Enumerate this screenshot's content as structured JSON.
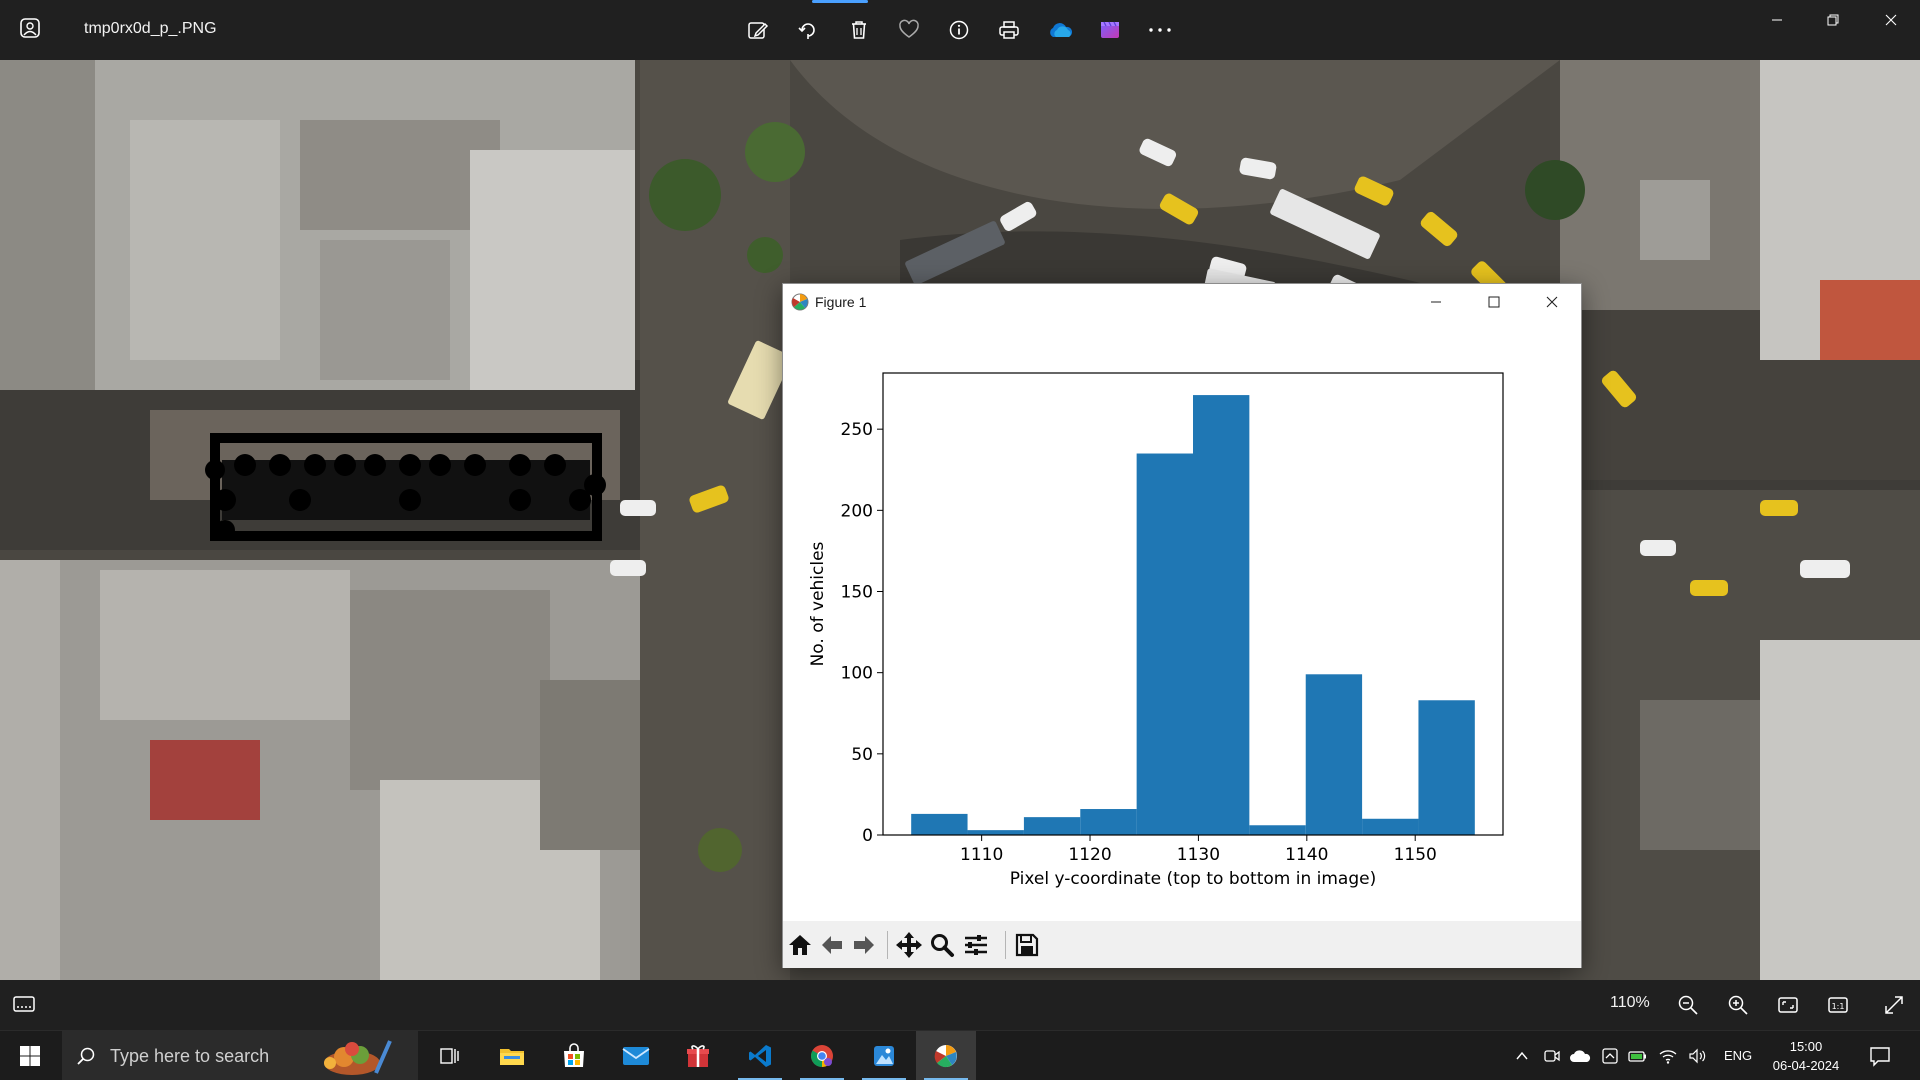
{
  "photos_app": {
    "file_title": "tmp0rx0d_p_.PNG",
    "toolbar_icons": [
      "edit-image-icon",
      "rotate-icon",
      "delete-icon",
      "favorite-icon",
      "info-icon",
      "print-icon",
      "onedrive-icon",
      "clipchamp-icon",
      "more-icon"
    ],
    "zoom_level": "110%"
  },
  "figure": {
    "window_title": "Figure 1",
    "toolbar_tools": [
      "home-icon",
      "back-icon",
      "forward-icon",
      "pan-icon",
      "zoom-icon",
      "configure-subplots-icon",
      "save-icon"
    ]
  },
  "chart_data": {
    "type": "bar",
    "bins": [
      {
        "x0": 1103.5,
        "x1": 1108.7,
        "count": 13
      },
      {
        "x0": 1108.7,
        "x1": 1113.9,
        "count": 3
      },
      {
        "x0": 1113.9,
        "x1": 1119.1,
        "count": 11
      },
      {
        "x0": 1119.1,
        "x1": 1124.3,
        "count": 16
      },
      {
        "x0": 1124.3,
        "x1": 1129.5,
        "count": 235
      },
      {
        "x0": 1129.5,
        "x1": 1134.7,
        "count": 271
      },
      {
        "x0": 1134.7,
        "x1": 1139.9,
        "count": 6
      },
      {
        "x0": 1139.9,
        "x1": 1145.1,
        "count": 99
      },
      {
        "x0": 1145.1,
        "x1": 1150.3,
        "count": 10
      },
      {
        "x0": 1150.3,
        "x1": 1155.5,
        "count": 83
      }
    ],
    "xlabel": "Pixel y-coordinate (top to bottom in image)",
    "ylabel": "No. of vehicles",
    "xlim": [
      1100.9,
      1158.1
    ],
    "ylim": [
      0,
      284.6
    ],
    "xticks": [
      "1110",
      "1120",
      "1130",
      "1140",
      "1150"
    ],
    "xtick_values": [
      1110,
      1120,
      1130,
      1140,
      1150
    ],
    "yticks": [
      "0",
      "50",
      "100",
      "150",
      "200",
      "250"
    ],
    "ytick_values": [
      0,
      50,
      100,
      150,
      200,
      250
    ],
    "bar_color": "#1f77b4",
    "grid": false,
    "legend": "none"
  },
  "taskbar": {
    "search_placeholder": "Type here to search",
    "language": "ENG",
    "time": "15:00",
    "date": "06-04-2024"
  }
}
